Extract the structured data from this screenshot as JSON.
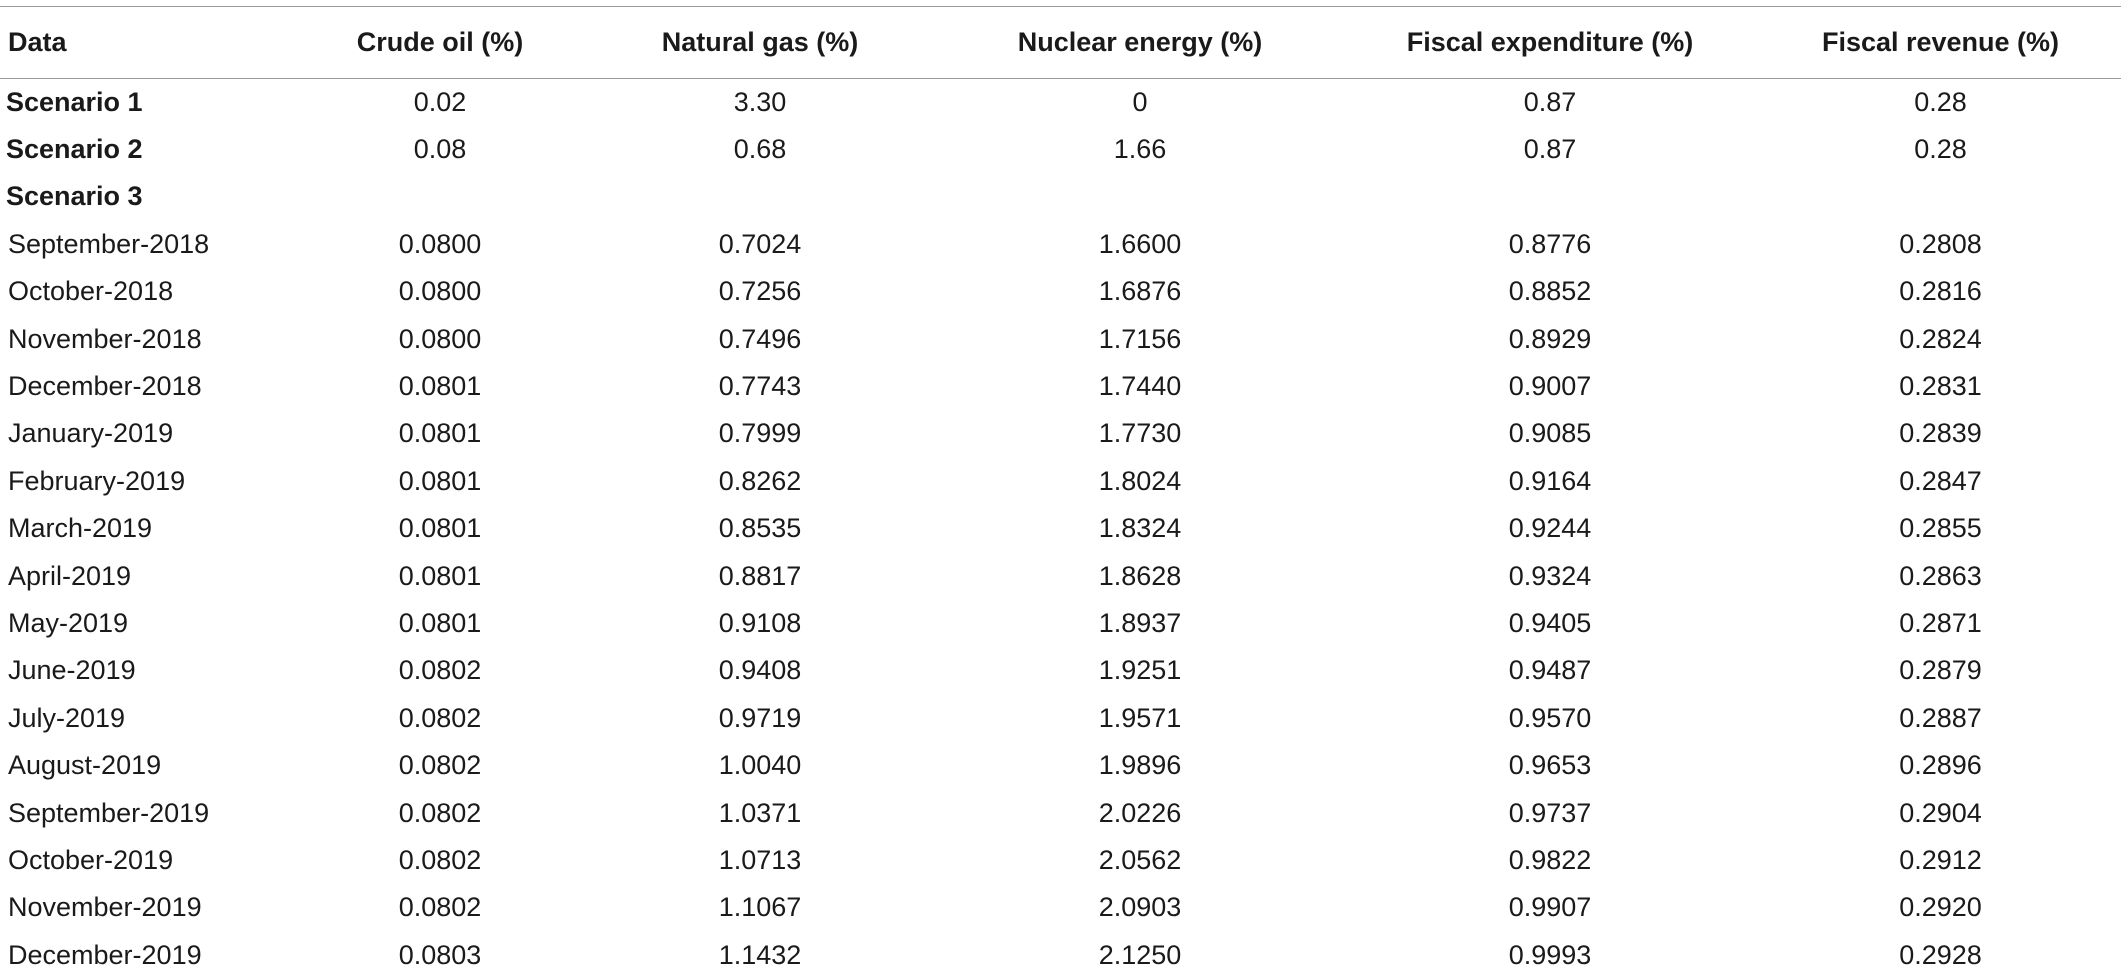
{
  "table": {
    "headers": [
      "Data",
      "Crude oil (%)",
      "Natural gas (%)",
      "Nuclear energy (%)",
      "Fiscal expenditure (%)",
      "Fiscal revenue (%)"
    ],
    "rows": [
      [
        "Scenario 1",
        "0.02",
        "3.30",
        "0",
        "0.87",
        "0.28"
      ],
      [
        "Scenario 2",
        "0.08",
        "0.68",
        "1.66",
        "0.87",
        "0.28"
      ],
      [
        "Scenario 3",
        "",
        "",
        "",
        "",
        ""
      ],
      [
        "September-2018",
        "0.0800",
        "0.7024",
        "1.6600",
        "0.8776",
        "0.2808"
      ],
      [
        "October-2018",
        "0.0800",
        "0.7256",
        "1.6876",
        "0.8852",
        "0.2816"
      ],
      [
        "November-2018",
        "0.0800",
        "0.7496",
        "1.7156",
        "0.8929",
        "0.2824"
      ],
      [
        "December-2018",
        "0.0801",
        "0.7743",
        "1.7440",
        "0.9007",
        "0.2831"
      ],
      [
        "January-2019",
        "0.0801",
        "0.7999",
        "1.7730",
        "0.9085",
        "0.2839"
      ],
      [
        "February-2019",
        "0.0801",
        "0.8262",
        "1.8024",
        "0.9164",
        "0.2847"
      ],
      [
        "March-2019",
        "0.0801",
        "0.8535",
        "1.8324",
        "0.9244",
        "0.2855"
      ],
      [
        "April-2019",
        "0.0801",
        "0.8817",
        "1.8628",
        "0.9324",
        "0.2863"
      ],
      [
        "May-2019",
        "0.0801",
        "0.9108",
        "1.8937",
        "0.9405",
        "0.2871"
      ],
      [
        "June-2019",
        "0.0802",
        "0.9408",
        "1.9251",
        "0.9487",
        "0.2879"
      ],
      [
        "July-2019",
        "0.0802",
        "0.9719",
        "1.9571",
        "0.9570",
        "0.2887"
      ],
      [
        "August-2019",
        "0.0802",
        "1.0040",
        "1.9896",
        "0.9653",
        "0.2896"
      ],
      [
        "September-2019",
        "0.0802",
        "1.0371",
        "2.0226",
        "0.9737",
        "0.2904"
      ],
      [
        "October-2019",
        "0.0802",
        "1.0713",
        "2.0562",
        "0.9822",
        "0.2912"
      ],
      [
        "November-2019",
        "0.0802",
        "1.1067",
        "2.0903",
        "0.9907",
        "0.2920"
      ],
      [
        "December-2019",
        "0.0803",
        "1.1432",
        "2.1250",
        "0.9993",
        "0.2928"
      ]
    ]
  }
}
